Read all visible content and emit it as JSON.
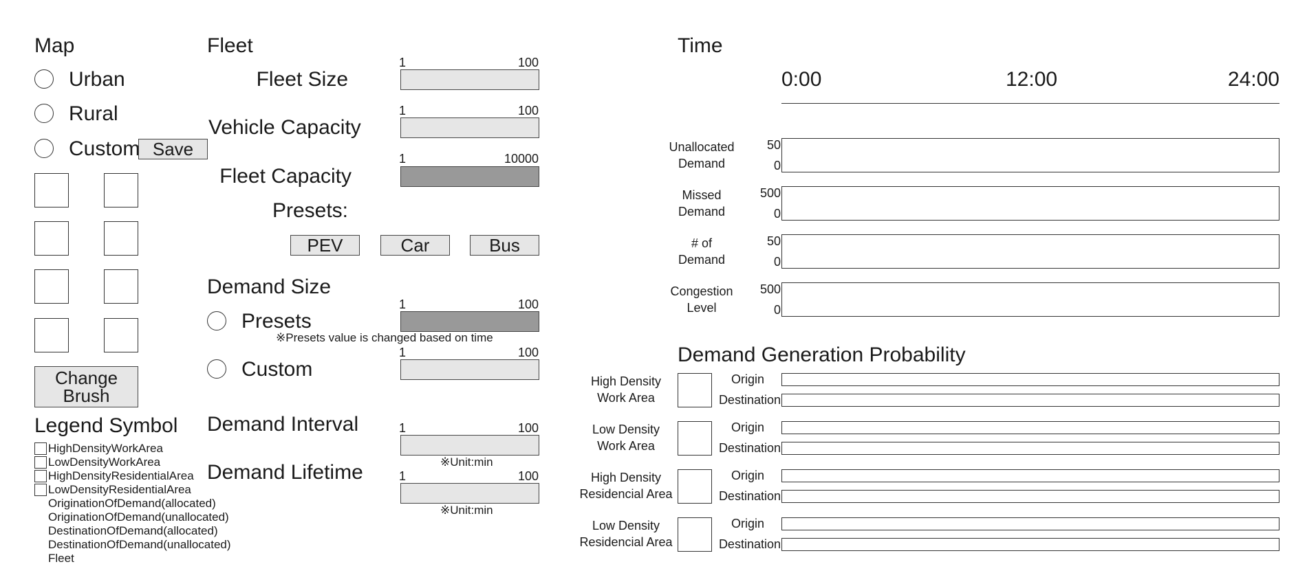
{
  "map": {
    "title": "Map",
    "options": [
      "Urban",
      "Rural",
      "Custom"
    ],
    "save_label": "Save",
    "change_brush_label": [
      "Change",
      "Brush"
    ]
  },
  "legend": {
    "title": "Legend Symbol",
    "items": [
      "HighDensityWorkArea",
      "LowDensityWorkArea",
      "HighDensityResidentialArea",
      "LowDensityResidentialArea",
      "OriginationOfDemand(allocated)",
      "OriginationOfDemand(unallocated)",
      "DestinationOfDemand(allocated)",
      "DestinationOfDemand(unallocated)",
      "Fleet"
    ]
  },
  "fleet": {
    "title": "Fleet",
    "fleet_size": {
      "label": "Fleet Size",
      "min": "1",
      "max": "100"
    },
    "vehicle_capacity": {
      "label": "Vehicle Capacity",
      "min": "1",
      "max": "100"
    },
    "fleet_capacity": {
      "label": "Fleet Capacity",
      "min": "1",
      "max": "10000"
    },
    "presets_label": "Presets:",
    "preset_buttons": [
      "PEV",
      "Car",
      "Bus"
    ]
  },
  "demand": {
    "title": "Demand Size",
    "presets_label": "Presets",
    "presets_note": "※Presets value is changed based on time",
    "custom_label": "Custom",
    "presets_slider": {
      "min": "1",
      "max": "100"
    },
    "custom_slider": {
      "min": "1",
      "max": "100"
    },
    "interval": {
      "label": "Demand Interval",
      "min": "1",
      "max": "100",
      "note": "※Unit:min"
    },
    "lifetime": {
      "label": "Demand Lifetime",
      "min": "1",
      "max": "100",
      "note": "※Unit:min"
    }
  },
  "time": {
    "title": "Time",
    "ticks": [
      "0:00",
      "12:00",
      "24:00"
    ],
    "charts": [
      {
        "label": [
          "Unallocated",
          "Demand"
        ],
        "max": "50",
        "min": "0"
      },
      {
        "label": [
          "Missed",
          "Demand"
        ],
        "max": "500",
        "min": "0"
      },
      {
        "label": [
          "# of",
          "Demand"
        ],
        "max": "50",
        "min": "0"
      },
      {
        "label": [
          "Congestion",
          "Level"
        ],
        "max": "500",
        "min": "0"
      }
    ]
  },
  "probability": {
    "title": "Demand Generation Probability",
    "origin_label": "Origin",
    "destination_label": "Destination",
    "areas": [
      [
        "High Density",
        "Work Area"
      ],
      [
        "Low Density",
        "Work Area"
      ],
      [
        "High Density",
        "Residencial Area"
      ],
      [
        "Low Density",
        "Residencial Area"
      ]
    ]
  }
}
